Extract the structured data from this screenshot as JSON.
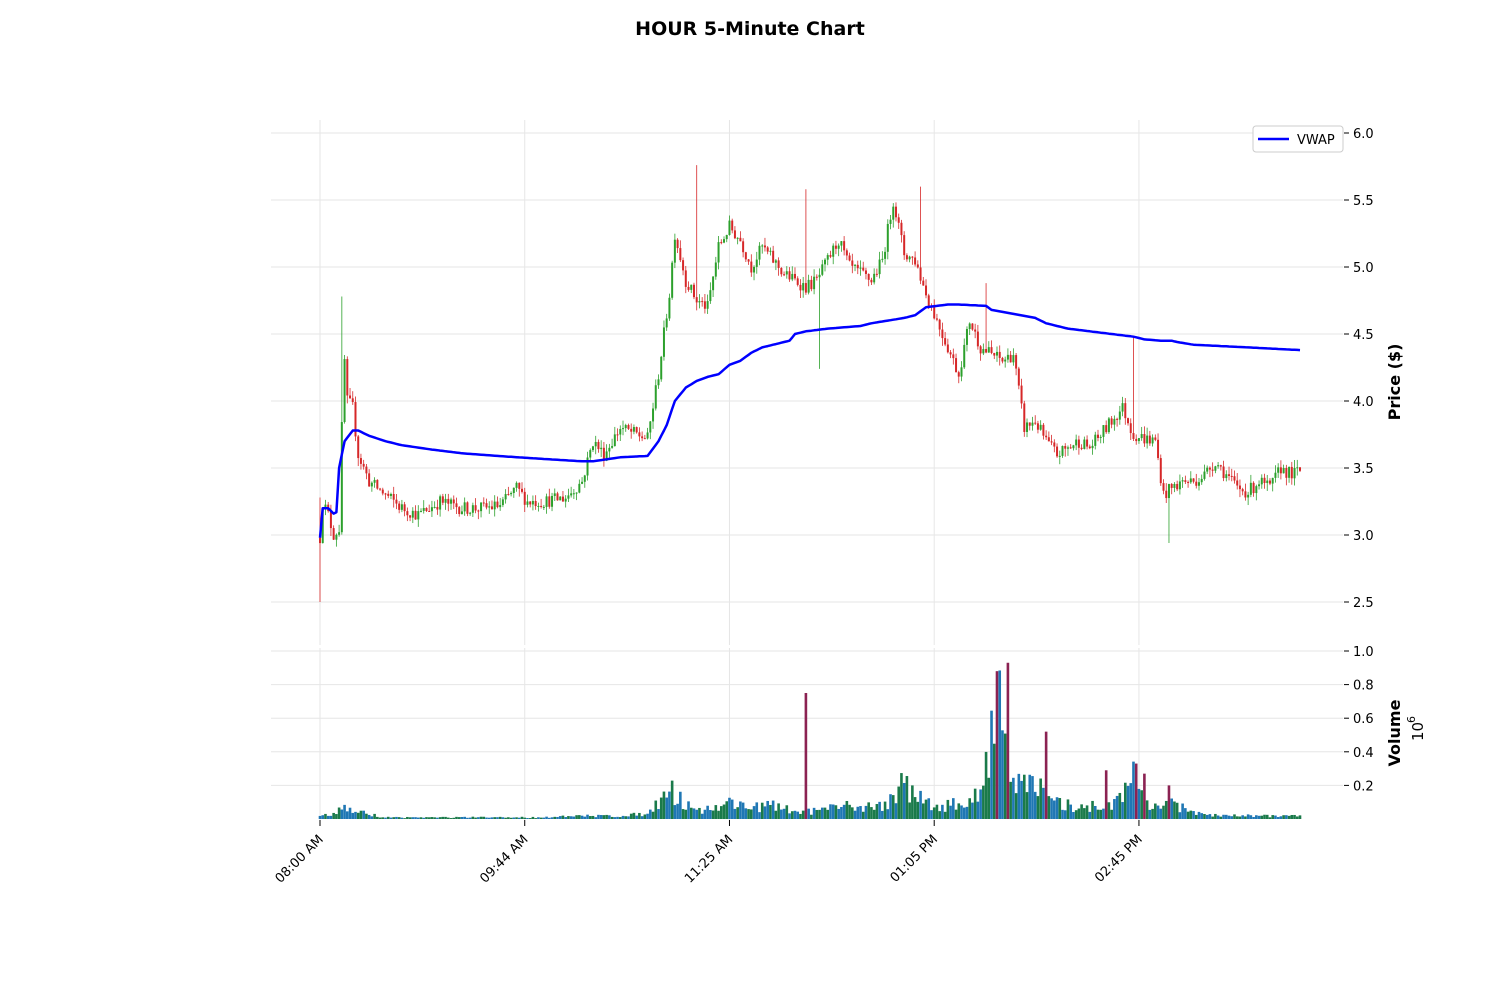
{
  "chart_data": {
    "type": "candlestick",
    "title": "HOUR 5-Minute Chart",
    "price_panel": {
      "ylabel": "Price ($)",
      "ylim": [
        2.45,
        6.1
      ],
      "y_ticks": [
        "2.5",
        "3.0",
        "3.5",
        "4.0",
        "4.5",
        "5.0",
        "5.5",
        "6.0"
      ],
      "grid": true
    },
    "volume_panel": {
      "ylabel": "Volume",
      "ylabel_exponent": "10",
      "ylabel_exponent_power": "6",
      "ylim": [
        0,
        1.0
      ],
      "y_ticks": [
        "0.2",
        "0.4",
        "0.6",
        "0.8",
        "1.0"
      ],
      "grid": true
    },
    "x_tick_labels": [
      "08:00 AM",
      "09:44 AM",
      "11:25 AM",
      "01:05 PM",
      "02:45 PM"
    ],
    "legend": {
      "placement": "top-right",
      "entries": [
        {
          "label": "VWAP",
          "color": "#0000ff"
        }
      ]
    },
    "colors": {
      "up": "#2ca02c",
      "down": "#d62728",
      "vwap": "#0000ff",
      "vol_up": "#1a7a4a",
      "vol_down": "#1f77b4",
      "vol_spike": "#8b2252"
    },
    "price_path": [
      [
        0,
        2.98
      ],
      [
        1,
        3.25
      ],
      [
        3,
        3.15
      ],
      [
        5,
        3.0
      ],
      [
        7,
        3.05
      ],
      [
        8,
        3.8
      ],
      [
        9,
        4.3
      ],
      [
        10,
        4.0
      ],
      [
        12,
        3.95
      ],
      [
        14,
        3.6
      ],
      [
        18,
        3.4
      ],
      [
        24,
        3.3
      ],
      [
        30,
        3.2
      ],
      [
        36,
        3.15
      ],
      [
        44,
        3.25
      ],
      [
        52,
        3.2
      ],
      [
        60,
        3.2
      ],
      [
        66,
        3.22
      ],
      [
        72,
        3.35
      ],
      [
        76,
        3.25
      ],
      [
        82,
        3.25
      ],
      [
        90,
        3.28
      ],
      [
        96,
        3.4
      ],
      [
        100,
        3.7
      ],
      [
        104,
        3.6
      ],
      [
        110,
        3.8
      ],
      [
        116,
        3.75
      ],
      [
        120,
        3.72
      ],
      [
        124,
        4.2
      ],
      [
        128,
        4.8
      ],
      [
        130,
        5.25
      ],
      [
        134,
        4.9
      ],
      [
        138,
        4.75
      ],
      [
        142,
        4.7
      ],
      [
        146,
        5.15
      ],
      [
        150,
        5.3
      ],
      [
        154,
        5.2
      ],
      [
        158,
        5.0
      ],
      [
        162,
        5.15
      ],
      [
        166,
        5.05
      ],
      [
        170,
        4.95
      ],
      [
        174,
        4.9
      ],
      [
        178,
        4.85
      ],
      [
        182,
        4.9
      ],
      [
        186,
        5.05
      ],
      [
        190,
        5.2
      ],
      [
        194,
        5.0
      ],
      [
        198,
        4.95
      ],
      [
        202,
        4.9
      ],
      [
        206,
        5.05
      ],
      [
        210,
        5.5
      ],
      [
        214,
        5.1
      ],
      [
        218,
        5.05
      ],
      [
        222,
        4.8
      ],
      [
        226,
        4.6
      ],
      [
        230,
        4.4
      ],
      [
        234,
        4.2
      ],
      [
        238,
        4.6
      ],
      [
        242,
        4.4
      ],
      [
        246,
        4.35
      ],
      [
        250,
        4.3
      ],
      [
        254,
        4.35
      ],
      [
        258,
        3.8
      ],
      [
        262,
        3.85
      ],
      [
        266,
        3.7
      ],
      [
        270,
        3.6
      ],
      [
        274,
        3.65
      ],
      [
        278,
        3.7
      ],
      [
        282,
        3.65
      ],
      [
        286,
        3.75
      ],
      [
        290,
        3.85
      ],
      [
        294,
        3.95
      ],
      [
        298,
        3.75
      ],
      [
        302,
        3.72
      ],
      [
        306,
        3.7
      ],
      [
        309,
        3.3
      ],
      [
        312,
        3.35
      ],
      [
        316,
        3.4
      ],
      [
        320,
        3.4
      ],
      [
        324,
        3.45
      ],
      [
        328,
        3.55
      ],
      [
        332,
        3.45
      ],
      [
        336,
        3.35
      ],
      [
        340,
        3.32
      ],
      [
        344,
        3.4
      ],
      [
        348,
        3.35
      ],
      [
        352,
        3.5
      ],
      [
        356,
        3.45
      ],
      [
        359,
        3.48
      ]
    ],
    "vwap": [
      [
        0,
        2.98
      ],
      [
        1,
        3.2
      ],
      [
        3,
        3.2
      ],
      [
        5,
        3.16
      ],
      [
        6,
        3.17
      ],
      [
        7,
        3.5
      ],
      [
        9,
        3.7
      ],
      [
        12,
        3.78
      ],
      [
        14,
        3.78
      ],
      [
        18,
        3.74
      ],
      [
        24,
        3.7
      ],
      [
        30,
        3.67
      ],
      [
        40,
        3.64
      ],
      [
        52,
        3.61
      ],
      [
        65,
        3.59
      ],
      [
        80,
        3.57
      ],
      [
        96,
        3.55
      ],
      [
        100,
        3.55
      ],
      [
        110,
        3.58
      ],
      [
        120,
        3.59
      ],
      [
        124,
        3.7
      ],
      [
        127,
        3.82
      ],
      [
        130,
        4.0
      ],
      [
        134,
        4.1
      ],
      [
        138,
        4.15
      ],
      [
        142,
        4.18
      ],
      [
        146,
        4.2
      ],
      [
        150,
        4.27
      ],
      [
        154,
        4.3
      ],
      [
        158,
        4.36
      ],
      [
        162,
        4.4
      ],
      [
        166,
        4.42
      ],
      [
        170,
        4.44
      ],
      [
        172,
        4.45
      ],
      [
        174,
        4.5
      ],
      [
        178,
        4.52
      ],
      [
        186,
        4.54
      ],
      [
        198,
        4.56
      ],
      [
        202,
        4.58
      ],
      [
        214,
        4.62
      ],
      [
        218,
        4.64
      ],
      [
        222,
        4.7
      ],
      [
        230,
        4.72
      ],
      [
        234,
        4.72
      ],
      [
        244,
        4.71
      ],
      [
        246,
        4.68
      ],
      [
        254,
        4.65
      ],
      [
        262,
        4.62
      ],
      [
        266,
        4.58
      ],
      [
        274,
        4.54
      ],
      [
        286,
        4.51
      ],
      [
        298,
        4.48
      ],
      [
        302,
        4.46
      ],
      [
        308,
        4.45
      ],
      [
        312,
        4.45
      ],
      [
        314,
        4.44
      ],
      [
        320,
        4.42
      ],
      [
        330,
        4.41
      ],
      [
        340,
        4.4
      ],
      [
        359,
        4.38
      ]
    ],
    "volume_profile": [
      [
        0,
        0.02
      ],
      [
        6,
        0.03
      ],
      [
        8,
        0.08
      ],
      [
        12,
        0.05
      ],
      [
        18,
        0.03
      ],
      [
        24,
        0.01
      ],
      [
        60,
        0.01
      ],
      [
        78,
        0.01
      ],
      [
        100,
        0.02
      ],
      [
        110,
        0.02
      ],
      [
        118,
        0.03
      ],
      [
        122,
        0.08
      ],
      [
        126,
        0.14
      ],
      [
        128,
        0.18
      ],
      [
        134,
        0.1
      ],
      [
        140,
        0.05
      ],
      [
        150,
        0.1
      ],
      [
        158,
        0.08
      ],
      [
        166,
        0.08
      ],
      [
        176,
        0.04
      ],
      [
        186,
        0.06
      ],
      [
        194,
        0.08
      ],
      [
        206,
        0.08
      ],
      [
        214,
        0.22
      ],
      [
        218,
        0.15
      ],
      [
        222,
        0.1
      ],
      [
        228,
        0.08
      ],
      [
        236,
        0.1
      ],
      [
        242,
        0.15
      ],
      [
        246,
        0.6
      ],
      [
        248,
        0.9
      ],
      [
        250,
        0.65
      ],
      [
        252,
        0.4
      ],
      [
        256,
        0.2
      ],
      [
        260,
        0.22
      ],
      [
        264,
        0.18
      ],
      [
        268,
        0.1
      ],
      [
        276,
        0.08
      ],
      [
        286,
        0.08
      ],
      [
        294,
        0.12
      ],
      [
        298,
        0.3
      ],
      [
        302,
        0.12
      ],
      [
        308,
        0.08
      ],
      [
        312,
        0.12
      ],
      [
        318,
        0.04
      ],
      [
        330,
        0.02
      ],
      [
        342,
        0.02
      ],
      [
        359,
        0.02
      ]
    ],
    "volume_spikes": [
      [
        178,
        0.75
      ],
      [
        252,
        0.93
      ],
      [
        248,
        0.88
      ],
      [
        266,
        0.52
      ],
      [
        299,
        0.33
      ],
      [
        302,
        0.27
      ],
      [
        288,
        0.29
      ],
      [
        311,
        0.2
      ]
    ]
  }
}
